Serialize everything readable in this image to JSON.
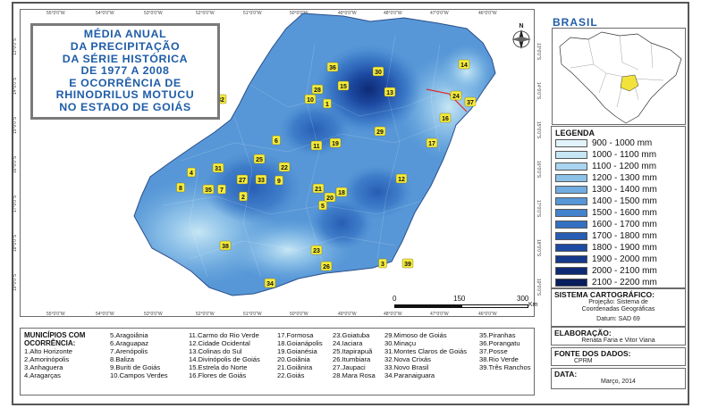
{
  "map_title": [
    "MÉDIA ANUAL",
    "DA PRECIPITAÇÃO",
    "DA SÉRIE HISTÓRICA",
    "DE 1977 A 2008",
    "E OCORRÊNCIA DE",
    "RHINODRILUS MOTUCU",
    "NO ESTADO DE GOIÁS"
  ],
  "colors": {
    "title": "#1f5da8",
    "frame": "#555555",
    "marker": "#f5eb3c"
  },
  "graticule": {
    "top": [
      "55°0'0\"W",
      "54°0'0\"W",
      "53°0'0\"W",
      "52°0'0\"W",
      "51°0'0\"W",
      "50°0'0\"W",
      "49°0'0\"W",
      "48°0'0\"W",
      "47°0'0\"W",
      "46°0'0\"W"
    ],
    "bottom": [
      "55°0'0\"W",
      "54°0'0\"W",
      "53°0'0\"W",
      "52°0'0\"W",
      "51°0'0\"W",
      "50°0'0\"W",
      "49°0'0\"W",
      "48°0'0\"W",
      "47°0'0\"W",
      "46°0'0\"W"
    ],
    "left": [
      "13°0'0\"S",
      "14°0'0\"S",
      "15°0'0\"S",
      "16°0'0\"S",
      "17°0'0\"S",
      "18°0'0\"S",
      "19°0'0\"S"
    ],
    "right": [
      "13°0'0\"S",
      "14°0'0\"S",
      "15°0'0\"S",
      "16°0'0\"S",
      "17°0'0\"S",
      "18°0'0\"S",
      "19°0'0\"S"
    ]
  },
  "scalebar": {
    "ticks": [
      "0",
      "150",
      "300"
    ],
    "unit": "Km"
  },
  "north_arrow": "N",
  "inset": {
    "title": "BRASIL"
  },
  "legend": {
    "title": "LEGENDA",
    "items": [
      {
        "label": "900 - 1000 mm",
        "color": "#e3f3fb"
      },
      {
        "label": "1000 - 1100 mm",
        "color": "#c6e6f5"
      },
      {
        "label": "1100 - 1200 mm",
        "color": "#a9d4ef"
      },
      {
        "label": "1200 - 1300 mm",
        "color": "#8cc1e8"
      },
      {
        "label": "1300 - 1400 mm",
        "color": "#70ace0"
      },
      {
        "label": "1400 - 1500 mm",
        "color": "#5797d7"
      },
      {
        "label": "1500 - 1600 mm",
        "color": "#4383cd"
      },
      {
        "label": "1600 - 1700 mm",
        "color": "#3370c2"
      },
      {
        "label": "1700 - 1800 mm",
        "color": "#275db4"
      },
      {
        "label": "1800 - 1900 mm",
        "color": "#1d4aa2"
      },
      {
        "label": "1900 - 2000 mm",
        "color": "#15398c"
      },
      {
        "label": "2000 - 2100 mm",
        "color": "#0e2a75"
      },
      {
        "label": "2100 - 2200 mm",
        "color": "#081d5c"
      }
    ]
  },
  "cartographic_system": {
    "title": "SISTEMA CARTOGRÁFICO:",
    "projection": "Projeção: Sistema de Coordenadas Geográficas",
    "datum": "Datum: SAD 69"
  },
  "elaboration": {
    "title": "ELABORAÇÃO:",
    "value": "Renata Faria e Vitor Viana"
  },
  "data_source": {
    "title": "FONTE DOS DADOS:",
    "value": "CPRM"
  },
  "date": {
    "title": "DATA:",
    "value": "Março, 2014"
  },
  "municipalities": {
    "heading": [
      "MUNICÍPIOS COM",
      "OCORRÊNCIA:"
    ],
    "columns": [
      [
        "1.Alto Horizonte",
        "2.Amorinópolis",
        "3.Anhaguera",
        "4.Aragarças"
      ],
      [
        "5.Aragoiânia",
        "6.Araguapaz",
        "7.Arenópolis",
        "8.Baliza",
        "9.Buriti de Goiás",
        "10.Campos Verdes"
      ],
      [
        "11.Carmo do Rio Verde",
        "12.Cidade Ocidental",
        "13.Colinas do Sul",
        "14.Divinópolis de Goiás",
        "15.Estrela do Norte",
        "16.Flores de Goiás"
      ],
      [
        "17.Formosa",
        "18.Goianápolis",
        "19.Goianésia",
        "20.Goiânia",
        "21.Goiânira",
        "22.Goiás"
      ],
      [
        "23.Goiatuba",
        "24.Iaciara",
        "25.Itapirapuã",
        "26.Itumbiara",
        "27.Jaupaci",
        "28.Mara Rosa"
      ],
      [
        "29.Mimoso de Goiás",
        "30.Minaçu",
        "31.Montes Claros de Goiás",
        "32.Nova Crixás",
        "33.Novo Brasil",
        "34.Paranaiguara"
      ],
      [
        "35.Piranhas",
        "36.Porangatu",
        "37.Posse",
        "38.Rio Verde",
        "39.Três Ranchos"
      ]
    ]
  },
  "occurrence_markers": [
    "1",
    "2",
    "3",
    "4",
    "5",
    "6",
    "7",
    "8",
    "9",
    "10",
    "11",
    "12",
    "13",
    "14",
    "15",
    "16",
    "17",
    "18",
    "19",
    "20",
    "21",
    "22",
    "23",
    "24",
    "25",
    "26",
    "27",
    "28",
    "29",
    "30",
    "31",
    "32",
    "33",
    "34",
    "35",
    "36",
    "37",
    "38",
    "39"
  ]
}
